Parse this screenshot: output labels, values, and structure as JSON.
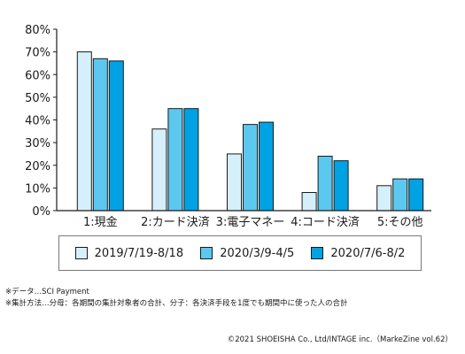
{
  "chart_data": {
    "type": "bar",
    "categories": [
      "1:現金",
      "2:カード決済",
      "3:電子マネー",
      "4:コード決済",
      "5:その他"
    ],
    "series": [
      {
        "name": "2019/7/19-8/18",
        "values": [
          70,
          36,
          25,
          8,
          11
        ],
        "color": "#d6f0fb"
      },
      {
        "name": "2020/3/9-4/5",
        "values": [
          67,
          45,
          38,
          24,
          14
        ],
        "color": "#5cc8ef"
      },
      {
        "name": "2020/7/6-8/2",
        "values": [
          66,
          45,
          39,
          22,
          14
        ],
        "color": "#00a2e3"
      }
    ],
    "y_ticks": [
      "0%",
      "10%",
      "20%",
      "30%",
      "40%",
      "50%",
      "60%",
      "70%",
      "80%"
    ],
    "ylim": [
      0,
      80
    ],
    "grid": false,
    "legend_position": "bottom"
  },
  "notes": [
    "※データ…SCI Payment",
    "※集計方法…分母：各期間の集計対象者の合計、分子：各決済手段を1度でも期間中に使った人の合計"
  ],
  "copyright": "©2021 SHOEISHA Co., Ltd/INTAGE inc.（MarkeZine vol.62）"
}
